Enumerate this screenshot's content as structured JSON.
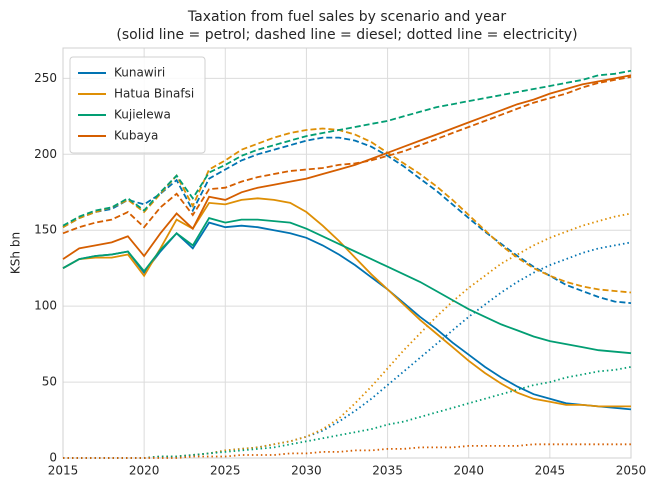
{
  "chart_data": {
    "type": "line",
    "title": "Taxation from fuel sales by scenario and year",
    "subtitle": "(solid line = petrol; dashed line = diesel; dotted line = electricity)",
    "ylabel": "KSh bn",
    "x": [
      2015,
      2016,
      2017,
      2018,
      2019,
      2020,
      2021,
      2022,
      2023,
      2024,
      2025,
      2026,
      2027,
      2028,
      2029,
      2030,
      2031,
      2032,
      2033,
      2034,
      2035,
      2036,
      2037,
      2038,
      2039,
      2040,
      2041,
      2042,
      2043,
      2044,
      2045,
      2046,
      2047,
      2048,
      2049,
      2050
    ],
    "xlim": [
      2015,
      2050
    ],
    "xticks": [
      2015,
      2020,
      2025,
      2030,
      2035,
      2040,
      2045,
      2050
    ],
    "ylim": [
      0,
      270
    ],
    "yticks": [
      0,
      50,
      100,
      150,
      200,
      250
    ],
    "grid": true,
    "legend": "upper left",
    "series": [
      {
        "name": "Kunawiri",
        "color": "#0173b2",
        "petrol": [
          125,
          131,
          133,
          134,
          136,
          122,
          136,
          148,
          138,
          155,
          152,
          153,
          152,
          150,
          148,
          145,
          140,
          134,
          127,
          119,
          111,
          102,
          93,
          85,
          76,
          68,
          60,
          53,
          47,
          42,
          39,
          36,
          35,
          34,
          33,
          32
        ],
        "diesel": [
          152,
          158,
          162,
          164,
          170,
          167,
          174,
          183,
          163,
          184,
          190,
          196,
          200,
          203,
          206,
          209,
          211,
          211,
          209,
          205,
          199,
          192,
          184,
          176,
          167,
          158,
          149,
          141,
          133,
          126,
          120,
          114,
          110,
          106,
          103,
          102
        ],
        "electricity": [
          0,
          0,
          0,
          0,
          0,
          0,
          1,
          1,
          2,
          3,
          5,
          6,
          7,
          9,
          11,
          14,
          18,
          24,
          31,
          39,
          48,
          57,
          66,
          75,
          84,
          93,
          101,
          109,
          116,
          122,
          127,
          131,
          135,
          138,
          140,
          142
        ]
      },
      {
        "name": "Hatua Binafsi",
        "color": "#de8f05",
        "petrol": [
          125,
          131,
          132,
          132,
          134,
          120,
          138,
          157,
          151,
          168,
          167,
          170,
          171,
          170,
          168,
          162,
          153,
          143,
          132,
          121,
          111,
          101,
          91,
          82,
          73,
          64,
          56,
          49,
          43,
          39,
          37,
          35,
          35,
          34,
          34,
          34
        ],
        "diesel": [
          152,
          158,
          162,
          165,
          170,
          162,
          174,
          186,
          166,
          190,
          196,
          203,
          207,
          211,
          214,
          216,
          217,
          216,
          213,
          208,
          201,
          194,
          187,
          179,
          170,
          160,
          150,
          140,
          132,
          125,
          120,
          116,
          113,
          111,
          110,
          109
        ],
        "electricity": [
          0,
          0,
          0,
          0,
          0,
          0,
          1,
          1,
          2,
          3,
          5,
          6,
          7,
          9,
          11,
          14,
          19,
          26,
          36,
          47,
          59,
          71,
          82,
          93,
          103,
          112,
          120,
          128,
          134,
          140,
          145,
          149,
          153,
          156,
          159,
          161
        ]
      },
      {
        "name": "Kujielewa",
        "color": "#029e73",
        "petrol": [
          125,
          131,
          133,
          134,
          136,
          123,
          137,
          148,
          140,
          158,
          155,
          157,
          157,
          156,
          155,
          151,
          146,
          141,
          136,
          131,
          126,
          121,
          116,
          110,
          104,
          98,
          93,
          88,
          84,
          80,
          77,
          75,
          73,
          71,
          70,
          69
        ],
        "diesel": [
          153,
          159,
          163,
          165,
          171,
          163,
          175,
          186,
          171,
          188,
          193,
          199,
          203,
          206,
          209,
          212,
          214,
          216,
          218,
          220,
          222,
          225,
          228,
          231,
          233,
          235,
          237,
          239,
          241,
          243,
          245,
          247,
          249,
          252,
          253,
          255
        ],
        "electricity": [
          0,
          0,
          0,
          0,
          0,
          0,
          1,
          1,
          2,
          3,
          4,
          5,
          6,
          7,
          9,
          11,
          13,
          15,
          17,
          19,
          22,
          24,
          27,
          30,
          33,
          36,
          39,
          42,
          45,
          48,
          50,
          53,
          55,
          57,
          58,
          60
        ]
      },
      {
        "name": "Kubaya",
        "color": "#d55e00",
        "petrol": [
          131,
          138,
          140,
          142,
          146,
          133,
          148,
          161,
          151,
          172,
          170,
          175,
          178,
          180,
          182,
          184,
          187,
          190,
          193,
          197,
          201,
          205,
          209,
          213,
          217,
          221,
          225,
          229,
          233,
          236,
          240,
          243,
          246,
          248,
          250,
          252
        ],
        "diesel": [
          148,
          152,
          155,
          157,
          162,
          152,
          165,
          174,
          160,
          177,
          178,
          182,
          185,
          187,
          189,
          190,
          191,
          193,
          194,
          196,
          199,
          202,
          206,
          210,
          214,
          218,
          222,
          226,
          230,
          234,
          237,
          240,
          244,
          247,
          249,
          251
        ],
        "electricity": [
          0,
          0,
          0,
          0,
          0,
          0,
          0,
          0,
          1,
          1,
          1,
          2,
          2,
          2,
          3,
          3,
          4,
          4,
          5,
          5,
          6,
          6,
          7,
          7,
          7,
          8,
          8,
          8,
          8,
          9,
          9,
          9,
          9,
          9,
          9,
          9
        ]
      }
    ]
  }
}
